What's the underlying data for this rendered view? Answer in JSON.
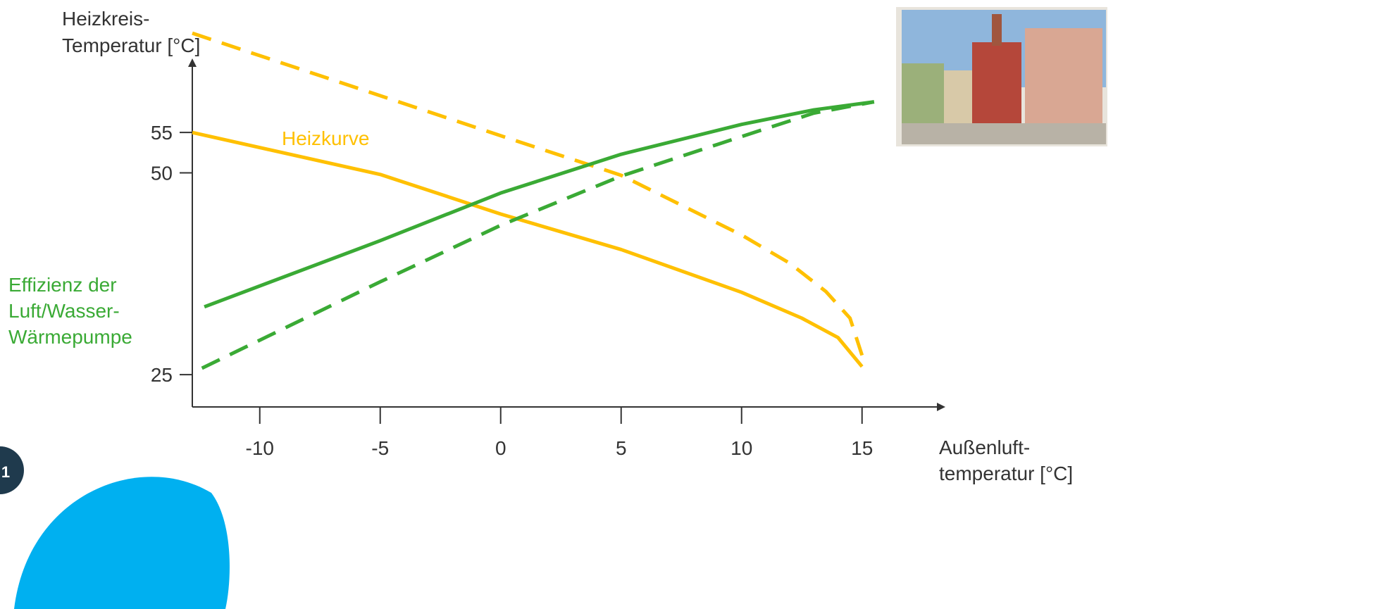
{
  "chart_data": {
    "type": "line",
    "xlim": [
      -12.8,
      18.4
    ],
    "xticks": [
      -10,
      -5,
      0,
      5,
      10,
      15
    ],
    "ylim": [
      21,
      64
    ],
    "yticks": [
      25,
      50,
      55
    ],
    "x_label": [
      "Außenluft-",
      "temperatur [°C]"
    ],
    "y_label": [
      "Heizkreis-",
      "Temperatur [°C]"
    ],
    "series": [
      {
        "color": "#ffc000",
        "dashed": false,
        "x": [
          -12.8,
          -5,
          0,
          5,
          10,
          12.5,
          14,
          15
        ],
        "values": [
          55,
          49.8,
          44.9,
          40.5,
          35.2,
          32,
          29.6,
          26
        ]
      },
      {
        "color": "#ffc000",
        "dashed": true,
        "x": [
          -12.8,
          0,
          5,
          10,
          12,
          13.5,
          14.5,
          15
        ],
        "values": [
          67.3,
          54.6,
          49.7,
          42.3,
          38.8,
          35.3,
          32,
          27.4
        ]
      },
      {
        "color": "#3aaa35",
        "dashed": false,
        "x": [
          -12.3,
          -5,
          0,
          5,
          10,
          13,
          15.5
        ],
        "values": [
          33.4,
          41.6,
          47.5,
          52.3,
          56,
          57.8,
          58.8
        ]
      },
      {
        "color": "#3aaa35",
        "dashed": true,
        "x": [
          -12.4,
          -5,
          0,
          5,
          10,
          13,
          15.5
        ],
        "values": [
          25.8,
          36.5,
          43.5,
          49.6,
          54.5,
          57.4,
          58.8
        ]
      }
    ],
    "annotations": [
      {
        "text": [
          "Heizkurve"
        ],
        "color": "#ffc000"
      },
      {
        "text": [
          "Effizienz der",
          "Luft/Wasser-",
          "Wärmepumpe"
        ],
        "color": "#3aaa35"
      }
    ],
    "page_number": "1"
  }
}
